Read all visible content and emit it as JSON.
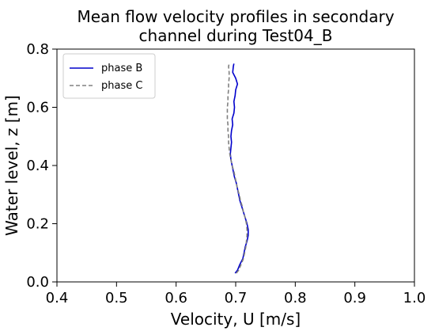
{
  "chart_data": {
    "type": "line",
    "title": [
      "Mean flow velocity profiles in secondary",
      "channel during Test04_B"
    ],
    "xlabel": "Velocity, U [m/s]",
    "ylabel": "Water level, z [m]",
    "xlim": [
      0.4,
      1.0
    ],
    "ylim": [
      0.0,
      0.8
    ],
    "xticks": [
      0.4,
      0.5,
      0.6,
      0.7,
      0.8,
      0.9,
      1.0
    ],
    "yticks": [
      0.0,
      0.2,
      0.4,
      0.6,
      0.8
    ],
    "grid": false,
    "legend_position": "top-left",
    "series": [
      {
        "name": "phase B",
        "color": "#0000cc",
        "dash": "solid",
        "points": [
          [
            0.699,
            0.03
          ],
          [
            0.703,
            0.04
          ],
          [
            0.707,
            0.06
          ],
          [
            0.712,
            0.08
          ],
          [
            0.714,
            0.1
          ],
          [
            0.716,
            0.12
          ],
          [
            0.719,
            0.14
          ],
          [
            0.721,
            0.16
          ],
          [
            0.721,
            0.18
          ],
          [
            0.719,
            0.2
          ],
          [
            0.716,
            0.22
          ],
          [
            0.713,
            0.24
          ],
          [
            0.71,
            0.26
          ],
          [
            0.707,
            0.28
          ],
          [
            0.705,
            0.3
          ],
          [
            0.703,
            0.32
          ],
          [
            0.701,
            0.34
          ],
          [
            0.698,
            0.36
          ],
          [
            0.696,
            0.38
          ],
          [
            0.694,
            0.4
          ],
          [
            0.692,
            0.42
          ],
          [
            0.691,
            0.44
          ],
          [
            0.692,
            0.46
          ],
          [
            0.693,
            0.48
          ],
          [
            0.692,
            0.5
          ],
          [
            0.693,
            0.52
          ],
          [
            0.695,
            0.54
          ],
          [
            0.694,
            0.56
          ],
          [
            0.697,
            0.58
          ],
          [
            0.698,
            0.6
          ],
          [
            0.697,
            0.62
          ],
          [
            0.699,
            0.64
          ],
          [
            0.7,
            0.66
          ],
          [
            0.703,
            0.68
          ],
          [
            0.7,
            0.7
          ],
          [
            0.695,
            0.72
          ],
          [
            0.696,
            0.74
          ],
          [
            0.697,
            0.75
          ]
        ]
      },
      {
        "name": "phase C",
        "color": "#808080",
        "dash": "dashed",
        "points": [
          [
            0.701,
            0.03
          ],
          [
            0.705,
            0.04
          ],
          [
            0.709,
            0.06
          ],
          [
            0.713,
            0.08
          ],
          [
            0.715,
            0.1
          ],
          [
            0.717,
            0.12
          ],
          [
            0.718,
            0.14
          ],
          [
            0.719,
            0.16
          ],
          [
            0.719,
            0.18
          ],
          [
            0.718,
            0.2
          ],
          [
            0.716,
            0.22
          ],
          [
            0.713,
            0.24
          ],
          [
            0.711,
            0.26
          ],
          [
            0.708,
            0.28
          ],
          [
            0.706,
            0.3
          ],
          [
            0.703,
            0.32
          ],
          [
            0.701,
            0.34
          ],
          [
            0.699,
            0.36
          ],
          [
            0.697,
            0.38
          ],
          [
            0.694,
            0.4
          ],
          [
            0.692,
            0.42
          ],
          [
            0.69,
            0.44
          ],
          [
            0.689,
            0.46
          ],
          [
            0.688,
            0.48
          ],
          [
            0.688,
            0.5
          ],
          [
            0.687,
            0.52
          ],
          [
            0.687,
            0.54
          ],
          [
            0.686,
            0.56
          ],
          [
            0.686,
            0.58
          ],
          [
            0.686,
            0.6
          ],
          [
            0.687,
            0.62
          ],
          [
            0.687,
            0.64
          ],
          [
            0.688,
            0.66
          ],
          [
            0.688,
            0.68
          ],
          [
            0.689,
            0.7
          ],
          [
            0.689,
            0.72
          ],
          [
            0.688,
            0.74
          ],
          [
            0.689,
            0.75
          ]
        ]
      }
    ]
  }
}
